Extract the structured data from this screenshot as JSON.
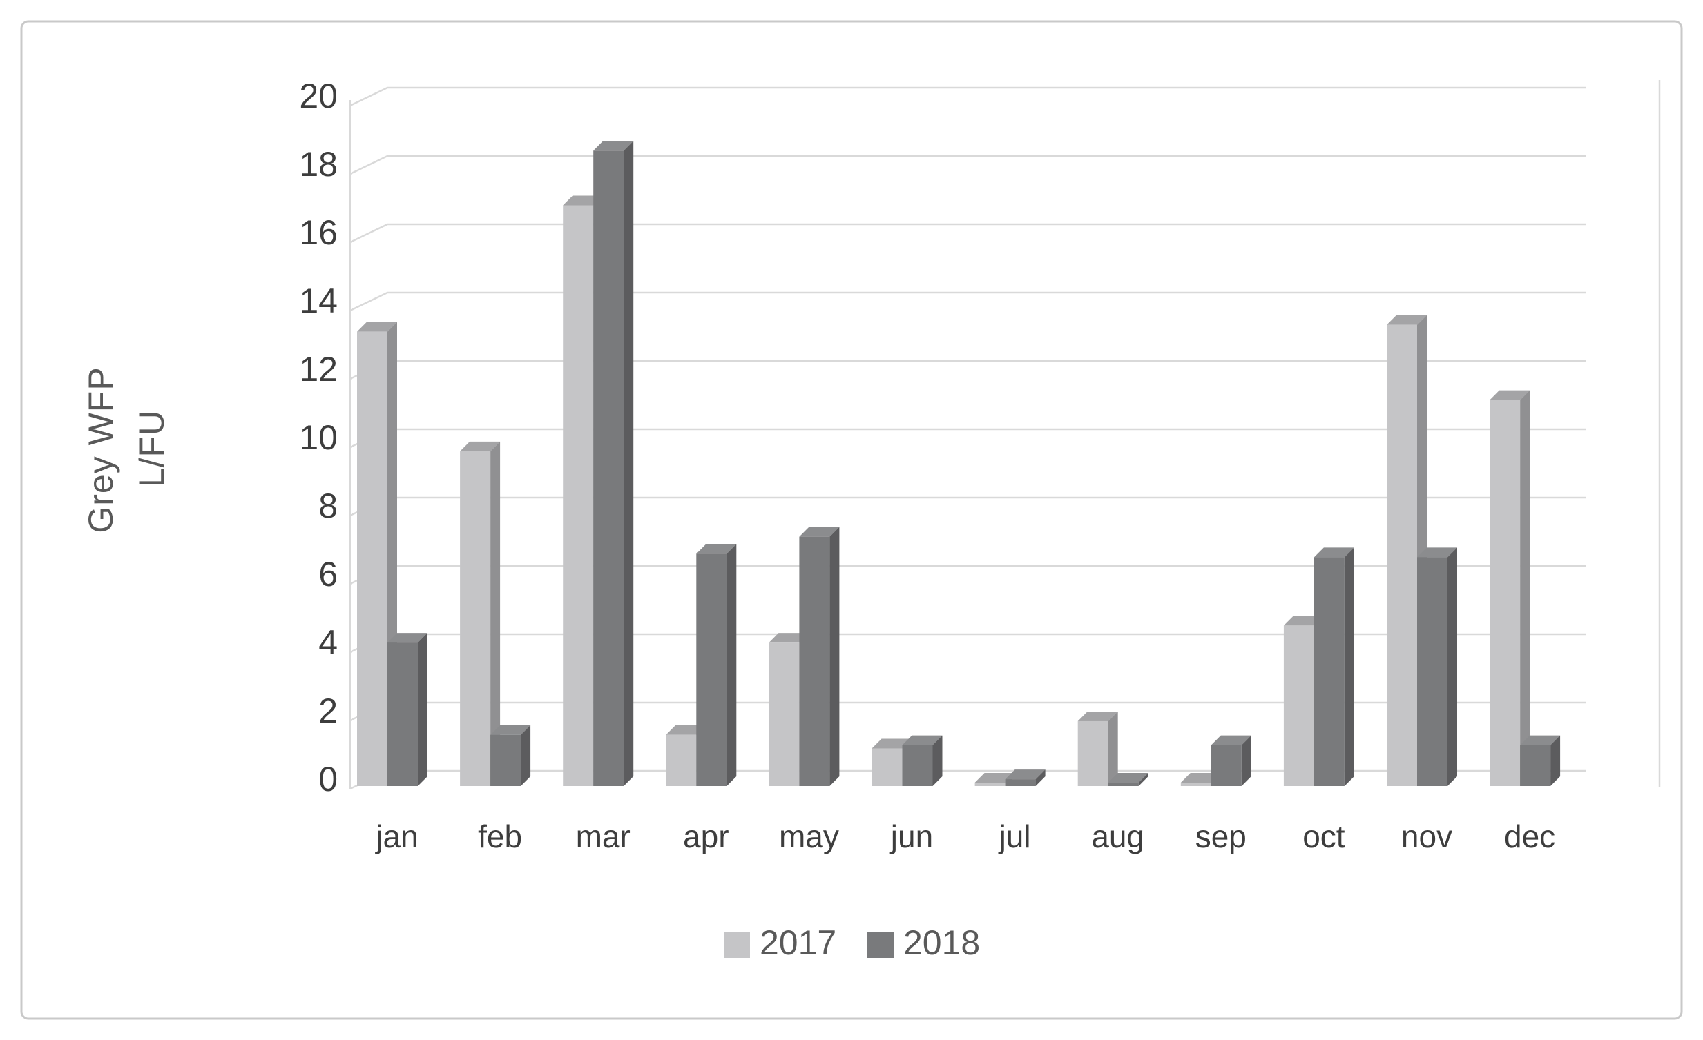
{
  "page": {
    "background": "#ffffff",
    "border_color": "#c9c9c9"
  },
  "chart_data": {
    "type": "bar",
    "style": "3d-clustered-column",
    "title": "",
    "categories": [
      "jan",
      "feb",
      "mar",
      "apr",
      "may",
      "jun",
      "jul",
      "aug",
      "sep",
      "oct",
      "nov",
      "dec"
    ],
    "series": [
      {
        "name": "2017",
        "values": [
          13.3,
          9.8,
          17,
          1.5,
          4.2,
          1.1,
          0.1,
          1.9,
          0.1,
          4.7,
          13.5,
          11.3
        ],
        "color": "#c5c5c7",
        "side_color": "#909092",
        "top_color": "#a4a4a6"
      },
      {
        "name": "2018",
        "values": [
          4.2,
          1.5,
          18.6,
          6.8,
          7.3,
          1.2,
          0.2,
          0.1,
          1.2,
          6.7,
          6.7,
          1.2
        ],
        "color": "#797a7c",
        "side_color": "#5c5c5e",
        "top_color": "#8b8c8e"
      }
    ],
    "ylabel": "Grey WFP L/FU",
    "ylabel_lines": [
      "Grey WFP",
      "L/FU"
    ],
    "xlabel": "",
    "ylim": [
      0,
      20
    ],
    "yticks": [
      0,
      2,
      4,
      6,
      8,
      10,
      12,
      14,
      16,
      18,
      20
    ],
    "grid": true,
    "gridline_color": "#d9d9d9",
    "legend_position": "bottom",
    "axis_title_color": "#595959",
    "tick_label_color": "#3d3d3d",
    "legend_text_color": "#595959"
  }
}
